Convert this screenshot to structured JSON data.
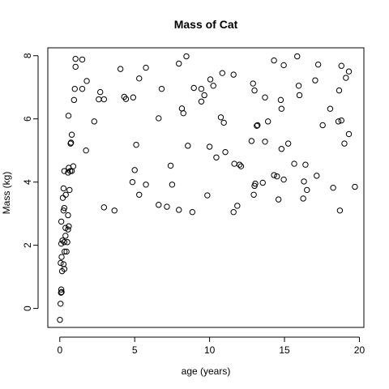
{
  "chart_data": {
    "type": "scatter",
    "title": "Mass of Cat",
    "xlabel": "age (years)",
    "ylabel": "Mass (kg)",
    "xlim": [
      -0.8,
      20.3
    ],
    "ylim": [
      -0.6,
      8.25
    ],
    "xticks": [
      0,
      5,
      10,
      15,
      20
    ],
    "yticks": [
      0,
      2,
      4,
      6,
      8
    ],
    "grid": false,
    "points": [
      {
        "x": 0.01,
        "y": -0.36
      },
      {
        "x": 0.05,
        "y": 0.15
      },
      {
        "x": 0.08,
        "y": 0.5
      },
      {
        "x": 0.1,
        "y": 0.6
      },
      {
        "x": 0.12,
        "y": 0.52
      },
      {
        "x": 0.15,
        "y": 1.18
      },
      {
        "x": 0.06,
        "y": 1.44
      },
      {
        "x": 0.12,
        "y": 1.63
      },
      {
        "x": 0.25,
        "y": 1.4
      },
      {
        "x": 0.3,
        "y": 1.25
      },
      {
        "x": 0.32,
        "y": 1.8
      },
      {
        "x": 0.45,
        "y": 1.8
      },
      {
        "x": 0.1,
        "y": 2.05
      },
      {
        "x": 0.18,
        "y": 2.15
      },
      {
        "x": 0.3,
        "y": 2.1
      },
      {
        "x": 0.38,
        "y": 2.3
      },
      {
        "x": 0.5,
        "y": 2.1
      },
      {
        "x": 0.55,
        "y": 2.5
      },
      {
        "x": 0.38,
        "y": 2.55
      },
      {
        "x": 0.1,
        "y": 2.75
      },
      {
        "x": 0.55,
        "y": 2.95
      },
      {
        "x": 0.25,
        "y": 3.1
      },
      {
        "x": 0.3,
        "y": 3.18
      },
      {
        "x": 0.6,
        "y": 2.6
      },
      {
        "x": 0.2,
        "y": 3.5
      },
      {
        "x": 0.4,
        "y": 3.6
      },
      {
        "x": 0.25,
        "y": 3.8
      },
      {
        "x": 0.65,
        "y": 3.75
      },
      {
        "x": 0.3,
        "y": 4.35
      },
      {
        "x": 0.55,
        "y": 4.3
      },
      {
        "x": 0.7,
        "y": 4.35
      },
      {
        "x": 0.8,
        "y": 4.35
      },
      {
        "x": 0.6,
        "y": 4.45
      },
      {
        "x": 0.9,
        "y": 4.5
      },
      {
        "x": 0.72,
        "y": 5.22
      },
      {
        "x": 0.75,
        "y": 5.25
      },
      {
        "x": 0.8,
        "y": 5.5
      },
      {
        "x": 0.58,
        "y": 6.1
      },
      {
        "x": 0.95,
        "y": 6.6
      },
      {
        "x": 1.0,
        "y": 6.95
      },
      {
        "x": 1.05,
        "y": 7.65
      },
      {
        "x": 1.05,
        "y": 7.9
      },
      {
        "x": 1.5,
        "y": 7.88
      },
      {
        "x": 1.5,
        "y": 6.95
      },
      {
        "x": 1.8,
        "y": 7.2
      },
      {
        "x": 1.75,
        "y": 5.0
      },
      {
        "x": 2.3,
        "y": 5.92
      },
      {
        "x": 2.6,
        "y": 6.62
      },
      {
        "x": 2.7,
        "y": 6.85
      },
      {
        "x": 2.95,
        "y": 6.62
      },
      {
        "x": 2.95,
        "y": 3.2
      },
      {
        "x": 3.65,
        "y": 3.1
      },
      {
        "x": 4.05,
        "y": 7.58
      },
      {
        "x": 4.3,
        "y": 6.7
      },
      {
        "x": 4.42,
        "y": 6.63
      },
      {
        "x": 4.9,
        "y": 6.68
      },
      {
        "x": 4.85,
        "y": 4.0
      },
      {
        "x": 5.0,
        "y": 4.38
      },
      {
        "x": 5.1,
        "y": 5.18
      },
      {
        "x": 5.3,
        "y": 7.28
      },
      {
        "x": 5.3,
        "y": 3.6
      },
      {
        "x": 5.75,
        "y": 3.92
      },
      {
        "x": 5.75,
        "y": 7.62
      },
      {
        "x": 6.6,
        "y": 6.02
      },
      {
        "x": 6.8,
        "y": 6.95
      },
      {
        "x": 6.6,
        "y": 3.28
      },
      {
        "x": 7.15,
        "y": 3.22
      },
      {
        "x": 7.4,
        "y": 4.52
      },
      {
        "x": 7.5,
        "y": 3.92
      },
      {
        "x": 7.95,
        "y": 7.75
      },
      {
        "x": 7.95,
        "y": 3.12
      },
      {
        "x": 8.15,
        "y": 6.33
      },
      {
        "x": 8.25,
        "y": 6.18
      },
      {
        "x": 8.45,
        "y": 7.98
      },
      {
        "x": 8.55,
        "y": 5.15
      },
      {
        "x": 8.85,
        "y": 3.05
      },
      {
        "x": 8.95,
        "y": 6.98
      },
      {
        "x": 9.45,
        "y": 6.95
      },
      {
        "x": 9.45,
        "y": 6.55
      },
      {
        "x": 9.65,
        "y": 6.75
      },
      {
        "x": 9.85,
        "y": 3.58
      },
      {
        "x": 10.0,
        "y": 5.12
      },
      {
        "x": 10.05,
        "y": 7.25
      },
      {
        "x": 10.25,
        "y": 7.05
      },
      {
        "x": 10.45,
        "y": 4.78
      },
      {
        "x": 10.75,
        "y": 6.05
      },
      {
        "x": 10.85,
        "y": 7.45
      },
      {
        "x": 10.95,
        "y": 5.88
      },
      {
        "x": 11.05,
        "y": 4.95
      },
      {
        "x": 11.6,
        "y": 7.4
      },
      {
        "x": 11.65,
        "y": 4.58
      },
      {
        "x": 11.6,
        "y": 3.05
      },
      {
        "x": 11.85,
        "y": 3.25
      },
      {
        "x": 12.0,
        "y": 4.55
      },
      {
        "x": 12.1,
        "y": 4.5
      },
      {
        "x": 12.8,
        "y": 5.3
      },
      {
        "x": 12.9,
        "y": 7.12
      },
      {
        "x": 12.95,
        "y": 3.6
      },
      {
        "x": 13.0,
        "y": 3.88
      },
      {
        "x": 13.0,
        "y": 6.9
      },
      {
        "x": 13.05,
        "y": 3.95
      },
      {
        "x": 13.15,
        "y": 5.78
      },
      {
        "x": 13.2,
        "y": 5.8
      },
      {
        "x": 13.55,
        "y": 3.98
      },
      {
        "x": 13.7,
        "y": 6.68
      },
      {
        "x": 13.7,
        "y": 5.28
      },
      {
        "x": 13.9,
        "y": 5.92
      },
      {
        "x": 14.3,
        "y": 4.22
      },
      {
        "x": 14.3,
        "y": 7.85
      },
      {
        "x": 14.5,
        "y": 4.18
      },
      {
        "x": 14.6,
        "y": 3.45
      },
      {
        "x": 14.75,
        "y": 6.6
      },
      {
        "x": 14.8,
        "y": 6.32
      },
      {
        "x": 14.8,
        "y": 5.05
      },
      {
        "x": 14.95,
        "y": 7.7
      },
      {
        "x": 14.95,
        "y": 4.08
      },
      {
        "x": 15.25,
        "y": 5.22
      },
      {
        "x": 15.65,
        "y": 4.58
      },
      {
        "x": 15.85,
        "y": 7.98
      },
      {
        "x": 15.95,
        "y": 7.05
      },
      {
        "x": 16.0,
        "y": 6.75
      },
      {
        "x": 16.25,
        "y": 3.48
      },
      {
        "x": 16.3,
        "y": 4.02
      },
      {
        "x": 16.4,
        "y": 4.55
      },
      {
        "x": 16.5,
        "y": 3.75
      },
      {
        "x": 17.05,
        "y": 7.22
      },
      {
        "x": 17.15,
        "y": 4.2
      },
      {
        "x": 17.25,
        "y": 7.72
      },
      {
        "x": 17.55,
        "y": 5.8
      },
      {
        "x": 18.05,
        "y": 6.32
      },
      {
        "x": 18.25,
        "y": 3.82
      },
      {
        "x": 18.6,
        "y": 5.92
      },
      {
        "x": 18.65,
        "y": 6.9
      },
      {
        "x": 18.7,
        "y": 3.1
      },
      {
        "x": 18.8,
        "y": 5.95
      },
      {
        "x": 18.8,
        "y": 7.68
      },
      {
        "x": 19.0,
        "y": 5.22
      },
      {
        "x": 19.1,
        "y": 7.3
      },
      {
        "x": 19.3,
        "y": 7.5
      },
      {
        "x": 19.3,
        "y": 5.52
      },
      {
        "x": 19.7,
        "y": 3.85
      }
    ]
  }
}
